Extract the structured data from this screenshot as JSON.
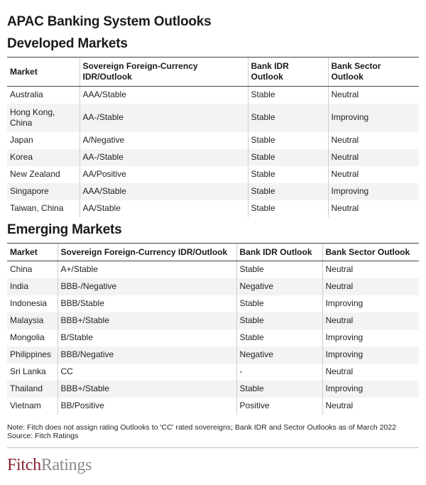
{
  "title": "APAC Banking System Outlooks",
  "developed": {
    "heading": "Developed Markets",
    "columns": [
      "Market",
      "Sovereign Foreign-Currency IDR/Outlook",
      "Bank IDR Outlook",
      "Bank Sector Outlook"
    ],
    "rows": [
      [
        "Australia",
        "AAA/Stable",
        "Stable",
        "Neutral"
      ],
      [
        "Hong Kong, China",
        "AA-/Stable",
        "Stable",
        "Improving"
      ],
      [
        "Japan",
        "A/Negative",
        "Stable",
        "Neutral"
      ],
      [
        "Korea",
        "AA-/Stable",
        "Stable",
        "Neutral"
      ],
      [
        "New Zealand",
        "AA/Positive",
        "Stable",
        "Neutral"
      ],
      [
        "Singapore",
        "AAA/Stable",
        "Stable",
        "Improving"
      ],
      [
        "Taiwan, China",
        "AA/Stable",
        "Stable",
        "Neutral"
      ]
    ]
  },
  "emerging": {
    "heading": "Emerging Markets",
    "columns": [
      "Market",
      "Sovereign Foreign-Currency IDR/Outlook",
      "Bank IDR Outlook",
      "Bank Sector Outlook"
    ],
    "rows": [
      [
        "China",
        "A+/Stable",
        "Stable",
        "Neutral"
      ],
      [
        "India",
        "BBB-/Negative",
        "Negative",
        "Neutral"
      ],
      [
        "Indonesia",
        "BBB/Stable",
        "Stable",
        "Improving"
      ],
      [
        "Malaysia",
        "BBB+/Stable",
        "Stable",
        "Neutral"
      ],
      [
        "Mongolia",
        "B/Stable",
        "Stable",
        "Improving"
      ],
      [
        "Philippines",
        "BBB/Negative",
        "Negative",
        "Improving"
      ],
      [
        "Sri Lanka",
        "CC",
        "-",
        "Neutral"
      ],
      [
        "Thailand",
        "BBB+/Stable",
        "Stable",
        "Improving"
      ],
      [
        "Vietnam",
        "BB/Positive",
        "Positive",
        "Neutral"
      ]
    ]
  },
  "note": "Note: Fitch does not assign rating Outlooks to 'CC' rated sovereigns; Bank IDR and Sector Outlooks as of March 2022",
  "source": "Source: Fitch Ratings",
  "logo": {
    "part1": "Fitch",
    "part2": "Ratings",
    "brand_color": "#8a2432",
    "secondary_color": "#8a8a8a"
  }
}
